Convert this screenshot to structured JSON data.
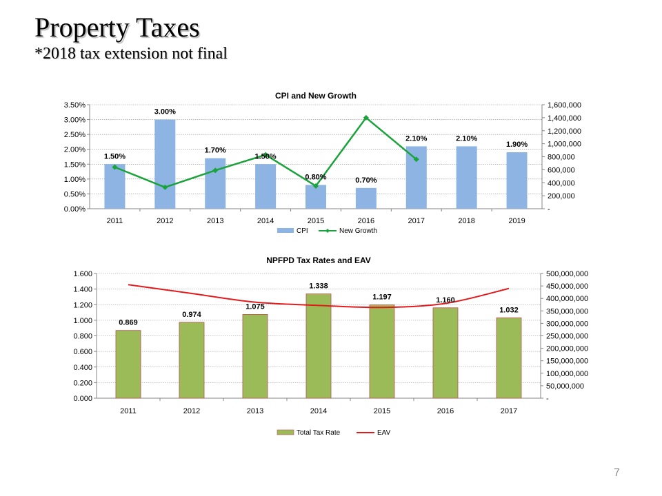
{
  "slide": {
    "title": "Property Taxes",
    "subtitle": "*2018 tax extension not final",
    "page_number": "7"
  },
  "chart_data": [
    {
      "type": "bar",
      "title": "CPI and New Growth",
      "categories": [
        "2011",
        "2012",
        "2013",
        "2014",
        "2015",
        "2016",
        "2017",
        "2018",
        "2019"
      ],
      "y_left": {
        "ticks": [
          "0.00%",
          "0.50%",
          "1.00%",
          "1.50%",
          "2.00%",
          "2.50%",
          "3.00%",
          "3.50%"
        ],
        "min": 0,
        "max": 3.5
      },
      "y_right": {
        "ticks": [
          "-",
          "200,000",
          "400,000",
          "600,000",
          "800,000",
          "1,000,000",
          "1,200,000",
          "1,400,000",
          "1,600,000"
        ],
        "min": 0,
        "max": 1600000
      },
      "series": [
        {
          "name": "CPI",
          "type": "bar",
          "axis": "left",
          "color": "#8db4e2",
          "values": [
            1.5,
            3.0,
            1.7,
            1.5,
            0.8,
            0.7,
            2.1,
            2.1,
            1.9
          ],
          "labels": [
            "1.50%",
            "3.00%",
            "1.70%",
            "1.50%",
            "0.80%",
            "0.70%",
            "2.10%",
            "2.10%",
            "1.90%"
          ]
        },
        {
          "name": "New Growth",
          "type": "line",
          "axis": "right",
          "color": "#1aa33a",
          "values": [
            640000,
            330000,
            590000,
            830000,
            350000,
            1400000,
            760000,
            null,
            null
          ]
        }
      ],
      "grid": true,
      "legend": "bottom"
    },
    {
      "type": "bar",
      "title": "NPFPD Tax Rates and EAV",
      "categories": [
        "2011",
        "2012",
        "2013",
        "2014",
        "2015",
        "2016",
        "2017"
      ],
      "y_left": {
        "ticks": [
          "0.000",
          "0.200",
          "0.400",
          "0.600",
          "0.800",
          "1.000",
          "1.200",
          "1.400",
          "1.600"
        ],
        "min": 0,
        "max": 1.6
      },
      "y_right": {
        "ticks": [
          "-",
          "50,000,000",
          "100,000,000",
          "150,000,000",
          "200,000,000",
          "250,000,000",
          "300,000,000",
          "350,000,000",
          "400,000,000",
          "450,000,000",
          "500,000,000"
        ],
        "min": 0,
        "max": 500000000
      },
      "series": [
        {
          "name": "Total Tax Rate",
          "type": "bar",
          "axis": "left",
          "color": "#9bbb59",
          "border": "#c0504d",
          "values": [
            0.869,
            0.974,
            1.075,
            1.338,
            1.197,
            1.16,
            1.032
          ],
          "labels": [
            "0.869",
            "0.974",
            "1.075",
            "1.338",
            "1.197",
            "1.160",
            "1.032"
          ]
        },
        {
          "name": "EAV",
          "type": "line",
          "axis": "right",
          "color": "#e31a1c",
          "values": [
            455000000,
            420000000,
            385000000,
            372000000,
            364000000,
            380000000,
            440000000
          ]
        }
      ],
      "grid": true,
      "legend": "bottom"
    }
  ]
}
